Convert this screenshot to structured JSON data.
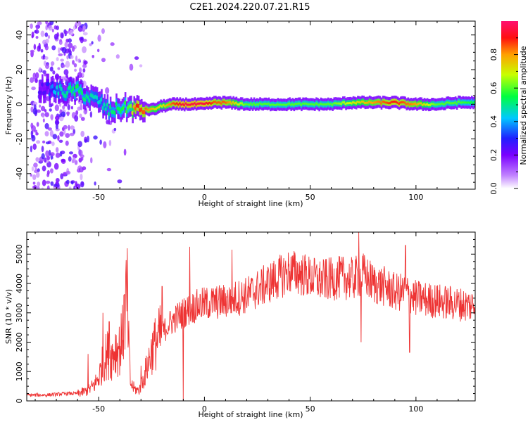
{
  "title": "C2E1.2024.220.07.21.R15",
  "chart_data": [
    {
      "type": "heatmap",
      "xlabel": "Height of straight line (km)",
      "ylabel": "Frequency (Hz)",
      "xlim": [
        -84,
        128
      ],
      "ylim": [
        -49,
        48
      ],
      "xticks": [
        -50,
        0,
        50,
        100
      ],
      "xtick_labels": [
        "-50",
        "0",
        "50",
        "100"
      ],
      "yticks": [
        -40,
        -20,
        0,
        20,
        40
      ],
      "ytick_labels": [
        "-40",
        "-20",
        "0",
        "20",
        "40"
      ],
      "colorbar": {
        "label": "Normalized spectral amplitude",
        "range": [
          0,
          1
        ],
        "ticks": [
          0.0,
          0.2,
          0.4,
          0.6,
          0.8
        ],
        "tick_labels": [
          "0.0",
          "0.2",
          "0.4",
          "0.6",
          "0.8"
        ],
        "colors": [
          "#ffffff",
          "#a000ff",
          "#2020ff",
          "#00c8ff",
          "#00ff40",
          "#c8ff00",
          "#ffa000",
          "#ff0040"
        ]
      },
      "ridge": {
        "x": [
          -75,
          -70,
          -65,
          -60,
          -55,
          -50,
          -45,
          -40,
          -35,
          -32,
          -28,
          -24,
          -20,
          -15,
          -10,
          -5,
          0,
          5,
          10,
          20,
          30,
          40,
          50,
          60,
          70,
          80,
          90,
          100,
          110,
          120,
          128
        ],
        "y": [
          9,
          8,
          7,
          8,
          4,
          2,
          -4,
          -2,
          -2,
          -3,
          -3,
          -3,
          -1,
          0,
          0,
          0,
          0,
          1,
          1,
          0,
          0,
          0,
          0,
          0,
          1,
          1,
          1,
          0,
          0,
          1,
          1
        ],
        "amplitude": [
          0.25,
          0.45,
          0.5,
          0.55,
          0.5,
          0.45,
          0.5,
          0.55,
          0.6,
          0.9,
          0.85,
          0.75,
          0.7,
          0.85,
          0.95,
          0.95,
          0.95,
          0.85,
          0.85,
          0.6,
          0.6,
          0.6,
          0.6,
          0.6,
          0.7,
          0.8,
          0.9,
          0.8,
          0.6,
          0.6,
          0.55
        ]
      },
      "grid": false
    },
    {
      "type": "line",
      "xlabel": "Height of straight line (km)",
      "ylabel": "SNR (10 * v/v)",
      "xlim": [
        -84,
        128
      ],
      "ylim": [
        0,
        5750
      ],
      "xticks": [
        -50,
        0,
        50,
        100
      ],
      "xtick_labels": [
        "-50",
        "0",
        "50",
        "100"
      ],
      "yticks": [
        0,
        1000,
        2000,
        3000,
        4000,
        5000
      ],
      "ytick_labels": [
        "0",
        "1000",
        "2000",
        "3000",
        "4000",
        "5000"
      ],
      "color": "#ee3333",
      "series": [
        {
          "x": [
            -84,
            -75,
            -65,
            -60,
            -55,
            -52,
            -50,
            -48,
            -46,
            -44,
            -42,
            -40,
            -38,
            -37,
            -36,
            -35,
            -33,
            -31,
            -29,
            -27,
            -25,
            -23,
            -20,
            -17,
            -14,
            -10,
            -5,
            0,
            5,
            10,
            15,
            20,
            25,
            30,
            35,
            40,
            45,
            50,
            55,
            60,
            65,
            70,
            75,
            80,
            85,
            90,
            95,
            100,
            105,
            110,
            115,
            120,
            125,
            128
          ],
          "y": [
            200,
            200,
            250,
            250,
            350,
            550,
            800,
            1300,
            1600,
            1500,
            1800,
            1800,
            2500,
            3500,
            2300,
            600,
            400,
            350,
            700,
            1200,
            1700,
            2000,
            2300,
            2600,
            2800,
            3000,
            3200,
            3300,
            3350,
            3400,
            3500,
            3600,
            3800,
            4000,
            4200,
            4400,
            4350,
            4200,
            4100,
            4150,
            4200,
            4150,
            4300,
            4000,
            3900,
            3700,
            3700,
            3500,
            3450,
            3400,
            3350,
            3300,
            3250,
            3300
          ]
        }
      ],
      "spikes": {
        "x": [
          -55,
          -48,
          -45,
          -38,
          -36.5,
          -30,
          -20,
          -10,
          -7,
          13,
          73,
          74,
          95,
          97
        ],
        "y": [
          1600,
          3000,
          2700,
          3600,
          5200,
          1200,
          3900,
          0,
          5250,
          5150,
          5750,
          2000,
          5300,
          1650
        ]
      },
      "grid": false
    }
  ]
}
